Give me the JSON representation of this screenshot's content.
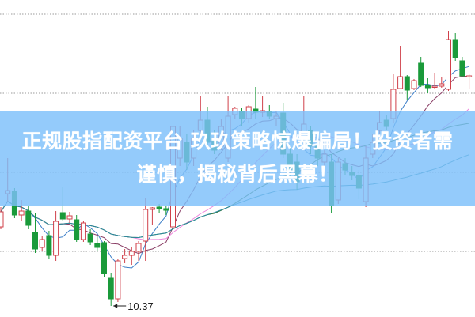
{
  "title": {
    "line1": "正规股指配资平台 玖玖策略惊爆骗局！投资者需",
    "line2": "谨慎，揭秘背后黑幕！"
  },
  "colors": {
    "up": "#d0404a",
    "down": "#1a9a3a",
    "grid": "#999999",
    "banner": "#7dc0fa",
    "neutral": "#6a5fb0"
  },
  "chart_data": {
    "type": "candlestick",
    "ylim": [
      10.23,
      14.24
    ],
    "grid": "horizontal-dotted",
    "gridlines": [
      14.06,
      13.06,
      12.06,
      11.06
    ],
    "annotation": {
      "label": "10.37",
      "value": 10.37,
      "candle_index": 16
    },
    "moving_averages": [
      {
        "period": 5,
        "color": "#3d7fc8"
      },
      {
        "period": 10,
        "color": "#8a3f66"
      },
      {
        "period": 20,
        "color": "#ee88dd"
      },
      {
        "period": 30,
        "color": "#2f6e2f"
      },
      {
        "period": 60,
        "color": "#2a8aa0"
      }
    ],
    "ohlc": [
      [
        11.37,
        11.56,
        11.62,
        11.34
      ],
      [
        11.79,
        11.83,
        12.24,
        11.69
      ],
      [
        11.82,
        11.52,
        11.86,
        11.48
      ],
      [
        11.52,
        11.57,
        11.71,
        11.44
      ],
      [
        11.57,
        11.39,
        11.64,
        11.34
      ],
      [
        11.3,
        11.09,
        11.54,
        11.04
      ],
      [
        11.11,
        11.21,
        11.26,
        11.06
      ],
      [
        11.26,
        11.01,
        11.32,
        10.96
      ],
      [
        11.01,
        11.44,
        11.57,
        10.94
      ],
      [
        11.55,
        11.47,
        11.88,
        11.44
      ],
      [
        11.47,
        11.51,
        11.56,
        11.42
      ],
      [
        11.46,
        11.21,
        11.52,
        11.18
      ],
      [
        11.21,
        11.42,
        11.44,
        11.18
      ],
      [
        11.28,
        11.18,
        11.34,
        11.14
      ],
      [
        11.16,
        11.11,
        11.26,
        11.06
      ],
      [
        11.17,
        10.78,
        11.19,
        10.74
      ],
      [
        10.72,
        10.46,
        10.79,
        10.37
      ],
      [
        10.46,
        10.94,
        10.96,
        10.42
      ],
      [
        10.97,
        11.01,
        11.09,
        10.91
      ],
      [
        11.01,
        11.06,
        11.11,
        10.89
      ],
      [
        11.06,
        11.16,
        11.19,
        10.94
      ],
      [
        11.19,
        11.59,
        11.74,
        10.94
      ],
      [
        11.59,
        11.61,
        11.62,
        11.39
      ],
      [
        11.62,
        11.6,
        11.66,
        11.54
      ],
      [
        11.6,
        11.58,
        11.64,
        11.52
      ],
      [
        11.37,
        12.64,
        12.84,
        11.34
      ],
      [
        12.24,
        12.49,
        12.64,
        12.14
      ],
      [
        12.44,
        12.19,
        12.54,
        12.09
      ],
      [
        12.24,
        12.49,
        12.59,
        12.14
      ],
      [
        12.59,
        12.72,
        13.02,
        12.54
      ],
      [
        12.72,
        12.44,
        12.89,
        12.39
      ],
      [
        12.49,
        12.34,
        12.59,
        12.29
      ],
      [
        12.39,
        12.64,
        12.74,
        12.34
      ],
      [
        12.24,
        12.77,
        13.02,
        12.19
      ],
      [
        12.79,
        12.87,
        12.89,
        12.74
      ],
      [
        12.83,
        12.74,
        12.87,
        12.64
      ],
      [
        12.74,
        12.89,
        12.91,
        12.69
      ],
      [
        12.86,
        12.82,
        13.14,
        12.74
      ],
      [
        12.82,
        12.84,
        13.02,
        12.76
      ],
      [
        12.83,
        12.77,
        12.91,
        12.74
      ],
      [
        12.74,
        12.77,
        12.84,
        12.64
      ],
      [
        12.81,
        12.29,
        12.94,
        12.24
      ],
      [
        12.29,
        12.09,
        12.39,
        11.99
      ],
      [
        12.19,
        11.94,
        12.29,
        11.84
      ],
      [
        12.49,
        12.67,
        13.02,
        12.39
      ],
      [
        12.59,
        12.39,
        12.64,
        12.29
      ],
      [
        12.39,
        12.24,
        12.44,
        12.14
      ],
      [
        12.19,
        12.29,
        12.34,
        12.09
      ],
      [
        12.19,
        11.64,
        12.29,
        11.54
      ],
      [
        11.71,
        12.19,
        12.24,
        11.66
      ],
      [
        12.17,
        12.09,
        12.24,
        12.02
      ],
      [
        12.06,
        12.02,
        12.14,
        11.96
      ],
      [
        12.02,
        11.86,
        12.09,
        11.72
      ],
      [
        11.69,
        12.24,
        12.39,
        11.62
      ],
      [
        12.29,
        12.44,
        12.54,
        12.24
      ],
      [
        12.59,
        12.69,
        12.84,
        12.54
      ],
      [
        12.72,
        12.64,
        12.79,
        12.59
      ],
      [
        12.74,
        13.11,
        13.3,
        12.69
      ],
      [
        13.12,
        13.27,
        13.66,
        13.11
      ],
      [
        13.27,
        13.1,
        13.29,
        12.98
      ],
      [
        13.12,
        13.22,
        13.24,
        13.1
      ],
      [
        13.44,
        13.16,
        13.52,
        13.14
      ],
      [
        13.16,
        13.13,
        13.25,
        13.06
      ],
      [
        13.14,
        13.15,
        13.32,
        13.12
      ],
      [
        13.15,
        13.18,
        13.27,
        13.13
      ],
      [
        13.11,
        13.74,
        13.85,
        13.09
      ],
      [
        13.74,
        13.51,
        13.82,
        13.47
      ],
      [
        13.47,
        13.28,
        13.52,
        13.26
      ],
      [
        13.27,
        13.28,
        13.31,
        13.12
      ]
    ]
  }
}
